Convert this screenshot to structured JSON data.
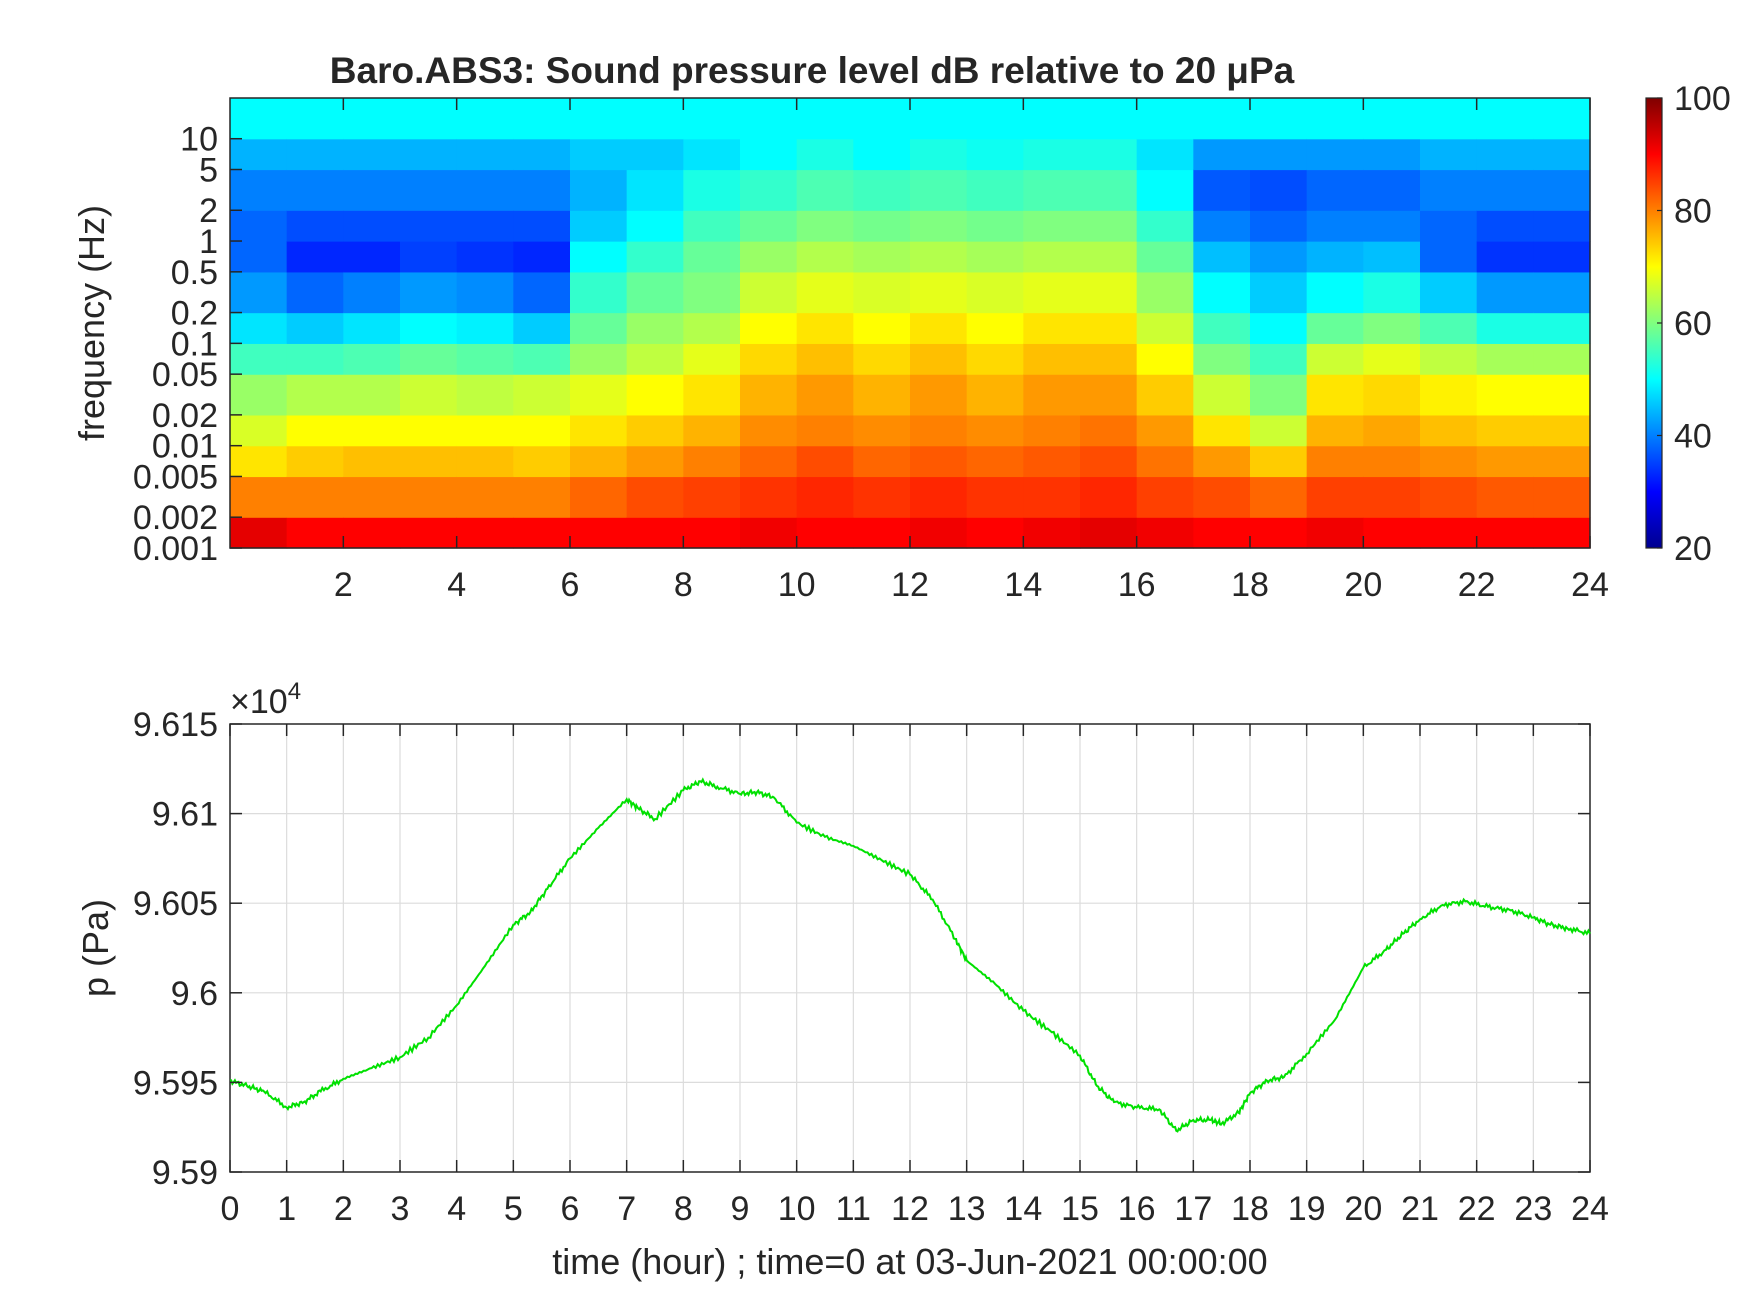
{
  "chart_data": [
    {
      "type": "heatmap",
      "title": "Baro.ABS3: Sound pressure level dB relative to 20 μPa",
      "xlabel": "",
      "ylabel": "frequency (Hz)",
      "xlim": [
        0,
        24
      ],
      "x_ticks": [
        2,
        4,
        6,
        8,
        10,
        12,
        14,
        16,
        18,
        20,
        22,
        24
      ],
      "y_scale": "log",
      "ylim": [
        0.001,
        25
      ],
      "y_ticks": [
        {
          "value": 0.001,
          "label": "0.001"
        },
        {
          "value": 0.002,
          "label": "0.002"
        },
        {
          "value": 0.005,
          "label": "0.005"
        },
        {
          "value": 0.01,
          "label": "0.01"
        },
        {
          "value": 0.02,
          "label": "0.02"
        },
        {
          "value": 0.05,
          "label": "0.05"
        },
        {
          "value": 0.1,
          "label": "0.1"
        },
        {
          "value": 0.2,
          "label": "0.2"
        },
        {
          "value": 0.5,
          "label": "0.5"
        },
        {
          "value": 1,
          "label": "1"
        },
        {
          "value": 2,
          "label": "2"
        },
        {
          "value": 5,
          "label": "5"
        },
        {
          "value": 10,
          "label": "10"
        }
      ],
      "colormap": "jet",
      "colorbar": {
        "range": [
          20,
          100
        ],
        "ticks": [
          20,
          40,
          60,
          80,
          100
        ]
      },
      "time_bins": [
        0,
        1,
        2,
        3,
        4,
        5,
        6,
        7,
        8,
        9,
        10,
        11,
        12,
        13,
        14,
        15,
        16,
        17,
        18,
        19,
        20,
        21,
        22,
        23,
        24
      ],
      "freq_bins": [
        0.001,
        0.002,
        0.005,
        0.01,
        0.02,
        0.05,
        0.1,
        0.2,
        0.5,
        1,
        2,
        5,
        10,
        25
      ],
      "spl_db": [
        [
          92,
          80,
          72,
          67,
          62,
          55,
          48,
          42,
          38,
          38,
          40,
          44,
          50,
          55
        ],
        [
          90,
          80,
          74,
          70,
          64,
          55,
          46,
          38,
          33,
          36,
          40,
          44,
          50,
          55
        ],
        [
          90,
          80,
          75,
          70,
          64,
          56,
          48,
          40,
          33,
          36,
          40,
          44,
          50,
          55
        ],
        [
          90,
          80,
          75,
          70,
          66,
          58,
          50,
          42,
          35,
          36,
          40,
          44,
          50,
          55
        ],
        [
          90,
          80,
          75,
          70,
          65,
          57,
          49,
          41,
          34,
          36,
          40,
          44,
          50,
          55
        ],
        [
          90,
          80,
          74,
          70,
          66,
          56,
          46,
          38,
          33,
          36,
          40,
          44,
          50,
          55
        ],
        [
          90,
          82,
          76,
          72,
          68,
          62,
          58,
          54,
          50,
          46,
          44,
          46,
          50,
          55
        ],
        [
          90,
          84,
          78,
          74,
          70,
          65,
          62,
          58,
          54,
          50,
          48,
          46,
          50,
          55
        ],
        [
          90,
          85,
          80,
          76,
          72,
          68,
          64,
          60,
          58,
          55,
          52,
          48,
          50,
          55
        ],
        [
          91,
          86,
          82,
          79,
          76,
          73,
          70,
          66,
          62,
          58,
          54,
          50,
          50,
          55
        ],
        [
          90,
          87,
          84,
          80,
          78,
          75,
          72,
          68,
          64,
          60,
          56,
          52,
          50,
          55
        ],
        [
          90,
          86,
          82,
          79,
          76,
          73,
          70,
          67,
          63,
          59,
          55,
          50,
          50,
          55
        ],
        [
          91,
          87,
          83,
          80,
          78,
          75,
          72,
          68,
          64,
          60,
          56,
          52,
          50,
          55
        ],
        [
          90,
          86,
          82,
          79,
          76,
          73,
          70,
          67,
          63,
          59,
          55,
          51,
          50,
          55
        ],
        [
          91,
          86,
          83,
          80,
          78,
          75,
          72,
          68,
          64,
          60,
          56,
          52,
          50,
          55
        ],
        [
          92,
          87,
          84,
          81,
          78,
          75,
          72,
          68,
          64,
          60,
          56,
          52,
          50,
          55
        ],
        [
          91,
          85,
          81,
          78,
          74,
          70,
          66,
          62,
          58,
          54,
          50,
          48,
          50,
          55
        ],
        [
          90,
          84,
          78,
          72,
          66,
          60,
          55,
          50,
          45,
          40,
          37,
          42,
          50,
          55
        ],
        [
          90,
          82,
          74,
          66,
          60,
          55,
          50,
          46,
          42,
          38,
          36,
          42,
          50,
          55
        ],
        [
          91,
          85,
          80,
          76,
          72,
          66,
          58,
          50,
          44,
          40,
          38,
          42,
          50,
          55
        ],
        [
          90,
          85,
          80,
          77,
          73,
          68,
          60,
          52,
          45,
          40,
          38,
          42,
          50,
          55
        ],
        [
          90,
          84,
          79,
          75,
          71,
          65,
          56,
          46,
          38,
          38,
          40,
          44,
          50,
          55
        ],
        [
          90,
          83,
          78,
          74,
          70,
          63,
          52,
          42,
          34,
          36,
          40,
          44,
          50,
          55
        ],
        [
          90,
          83,
          78,
          74,
          70,
          63,
          52,
          42,
          34,
          36,
          40,
          44,
          50,
          55
        ]
      ]
    },
    {
      "type": "line",
      "title": "",
      "xlabel": "time (hour) ; time=0 at 03-Jun-2021 00:00:00",
      "ylabel": "p (Pa)",
      "y_exponent_label": "×10",
      "y_exponent": "4",
      "xlim": [
        0,
        24
      ],
      "ylim": [
        95.9,
        96.15
      ],
      "x_ticks": [
        0,
        1,
        2,
        3,
        4,
        5,
        6,
        7,
        8,
        9,
        10,
        11,
        12,
        13,
        14,
        15,
        16,
        17,
        18,
        19,
        20,
        21,
        22,
        23,
        24
      ],
      "y_ticks": [
        {
          "value": 95.9,
          "label": "9.59"
        },
        {
          "value": 95.95,
          "label": "9.595"
        },
        {
          "value": 96.0,
          "label": "9.6"
        },
        {
          "value": 96.05,
          "label": "9.605"
        },
        {
          "value": 96.1,
          "label": "9.61"
        },
        {
          "value": 96.15,
          "label": "9.615"
        }
      ],
      "grid": true,
      "series": [
        {
          "color": "#00e000",
          "x": [
            0,
            0.3,
            0.6,
            1.0,
            1.3,
            1.6,
            2.0,
            2.5,
            3.0,
            3.5,
            4.0,
            4.5,
            5.0,
            5.3,
            5.6,
            6.0,
            6.5,
            7.0,
            7.2,
            7.5,
            8.0,
            8.3,
            8.6,
            9.0,
            9.3,
            9.6,
            10.0,
            10.5,
            11.0,
            11.5,
            12.0,
            12.4,
            12.8,
            13.0,
            13.5,
            14.0,
            14.5,
            15.0,
            15.3,
            15.6,
            16.0,
            16.4,
            16.7,
            17.0,
            17.3,
            17.5,
            17.8,
            18.0,
            18.3,
            18.6,
            19.0,
            19.5,
            20.0,
            20.4,
            20.7,
            21.0,
            21.4,
            21.8,
            22.2,
            22.6,
            23.0,
            23.3,
            23.6,
            24.0
          ],
          "y": [
            95.951,
            95.948,
            95.945,
            95.936,
            95.939,
            95.945,
            95.952,
            95.958,
            95.964,
            95.975,
            95.993,
            96.015,
            96.038,
            96.045,
            96.058,
            96.075,
            96.092,
            96.108,
            96.103,
            96.097,
            96.113,
            96.118,
            96.115,
            96.111,
            96.112,
            96.109,
            96.095,
            96.087,
            96.082,
            96.074,
            96.066,
            96.052,
            96.03,
            96.018,
            96.005,
            95.99,
            95.978,
            95.965,
            95.948,
            95.939,
            95.936,
            95.935,
            95.923,
            95.929,
            95.929,
            95.927,
            95.933,
            95.944,
            95.951,
            95.953,
            95.966,
            95.985,
            96.014,
            96.024,
            96.033,
            96.041,
            96.049,
            96.051,
            96.048,
            96.046,
            96.042,
            96.038,
            96.036,
            96.033
          ]
        }
      ]
    }
  ]
}
